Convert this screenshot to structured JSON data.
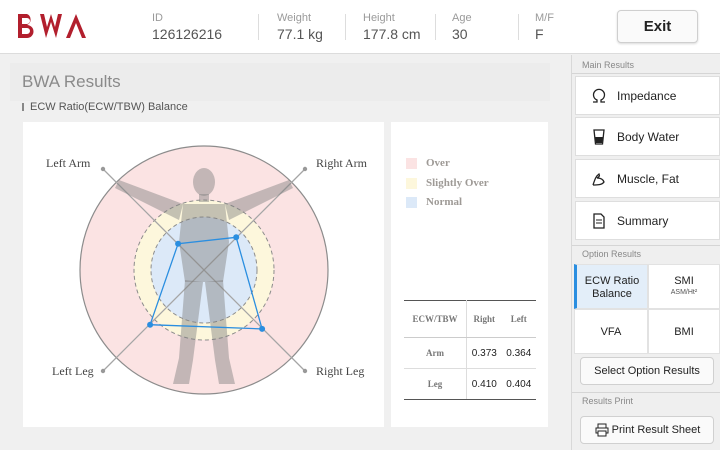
{
  "app": {
    "logo_text": "BWA",
    "logo_color": "#b21f2d"
  },
  "patient": {
    "id": {
      "label": "ID",
      "value": "126126216"
    },
    "weight": {
      "label": "Weight",
      "value": "77.1 kg"
    },
    "height": {
      "label": "Height",
      "value": "177.8 cm"
    },
    "age": {
      "label": "Age",
      "value": "30"
    },
    "sex": {
      "label": "M/F",
      "value": "F"
    }
  },
  "header": {
    "exit_label": "Exit"
  },
  "main": {
    "title": "BWA Results",
    "subtitle": "ECW Ratio(ECW/TBW) Balance"
  },
  "chart": {
    "labels": {
      "left_arm": "Left Arm",
      "right_arm": "Right Arm",
      "left_leg": "Left Leg",
      "right_leg": "Right Leg"
    },
    "zone_colors": {
      "over": "#fbe3e3",
      "slightly_over": "#fdf7dc",
      "normal": "#dce9f8"
    },
    "accent": "#2a8ee0"
  },
  "legend": {
    "items": [
      {
        "label": "Over",
        "color": "#fbe3e3"
      },
      {
        "label": "Slightly Over",
        "color": "#fdf7dc"
      },
      {
        "label": "Normal",
        "color": "#dce9f8"
      }
    ]
  },
  "table": {
    "headers": [
      "ECW/TBW",
      "Right",
      "Left"
    ],
    "rows": [
      {
        "label": "Arm",
        "right": "0.373",
        "left": "0.364"
      },
      {
        "label": "Leg",
        "right": "0.410",
        "left": "0.404"
      }
    ]
  },
  "chart_data": {
    "type": "radar",
    "axes": [
      "Right Arm",
      "Left Arm",
      "Left Leg",
      "Right Leg"
    ],
    "values": [
      0.373,
      0.364,
      0.404,
      0.41
    ],
    "zones": [
      "Over",
      "Slightly Over",
      "Normal"
    ]
  },
  "sidebar": {
    "main_results_label": "Main Results",
    "main_results": [
      {
        "label": "Impedance",
        "icon": "omega-icon"
      },
      {
        "label": "Body Water",
        "icon": "water-glass-icon"
      },
      {
        "label": "Muscle, Fat",
        "icon": "muscle-arm-icon"
      },
      {
        "label": "Summary",
        "icon": "document-icon"
      }
    ],
    "option_results_label": "Option Results",
    "options": {
      "ecw": {
        "line1": "ECW Ratio",
        "line2": "Balance"
      },
      "smi": {
        "line1": "SMI",
        "line2": "ASM/Ht²"
      },
      "vfa": {
        "label": "VFA"
      },
      "bmi": {
        "label": "BMI"
      }
    },
    "select_option_label": "Select Option Results",
    "results_print_label": "Results Print",
    "print_label": "Print Result Sheet"
  }
}
